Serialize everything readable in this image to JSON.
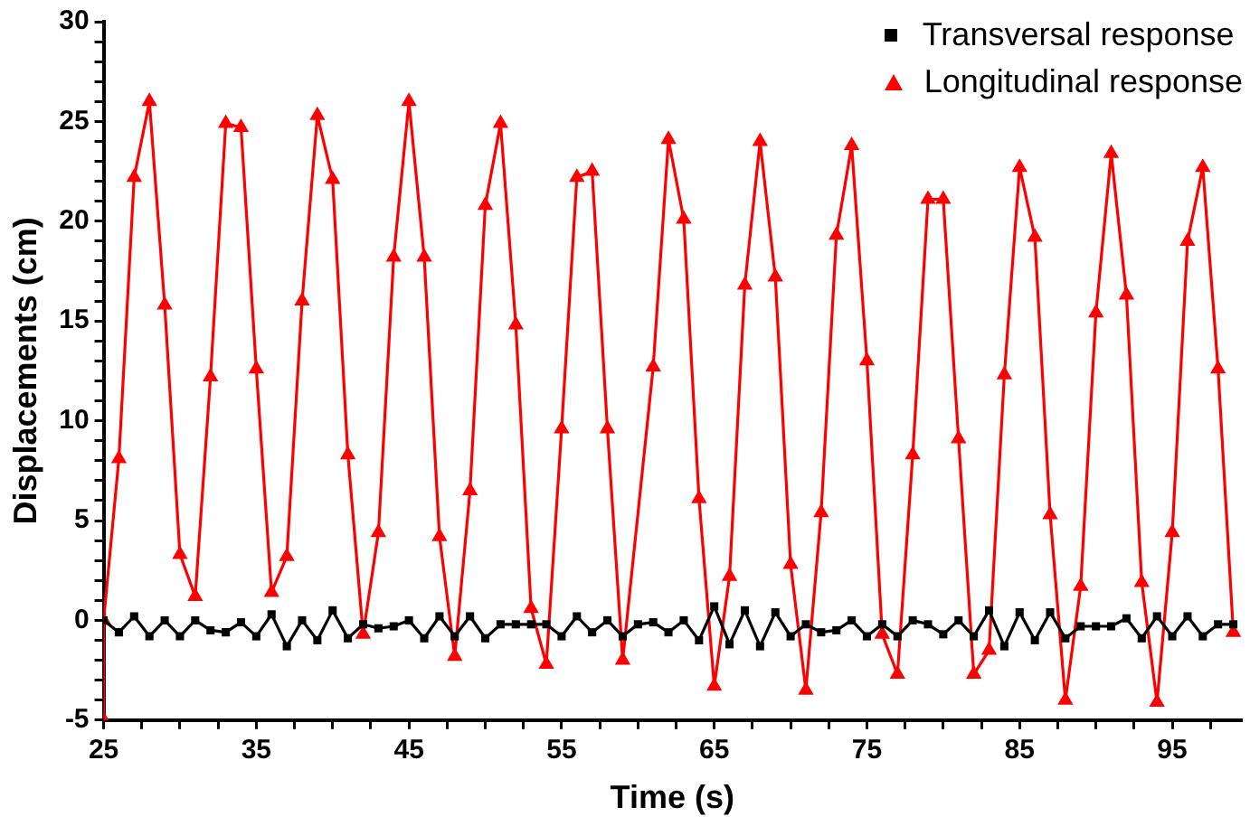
{
  "chart_data": {
    "type": "line",
    "xlabel": "Time (s)",
    "ylabel": "Displacements (cm)",
    "xlim": [
      25,
      99.5
    ],
    "ylim": [
      -5,
      30
    ],
    "xticks": [
      25,
      {
        "value": 27.5,
        "label": null
      },
      {
        "value": 30,
        "label": null
      },
      {
        "value": 32.5,
        "label": null
      },
      35,
      {
        "value": 37.5,
        "label": null
      },
      {
        "value": 40,
        "label": null
      },
      {
        "value": 42.5,
        "label": null
      },
      45,
      {
        "value": 47.5,
        "label": null
      },
      {
        "value": 50,
        "label": null
      },
      {
        "value": 52.5,
        "label": null
      },
      55,
      {
        "value": 57.5,
        "label": null
      },
      {
        "value": 60,
        "label": null
      },
      {
        "value": 62.5,
        "label": null
      },
      65,
      {
        "value": 67.5,
        "label": null
      },
      {
        "value": 70,
        "label": null
      },
      {
        "value": 72.5,
        "label": null
      },
      75,
      {
        "value": 77.5,
        "label": null
      },
      {
        "value": 80,
        "label": null
      },
      {
        "value": 82.5,
        "label": null
      },
      85,
      {
        "value": 87.5,
        "label": null
      },
      {
        "value": 90,
        "label": null
      },
      {
        "value": 92.5,
        "label": null
      },
      95,
      {
        "value": 97.5,
        "label": null
      }
    ],
    "yticks": [
      -5,
      {
        "value": -4,
        "label": null
      },
      {
        "value": -3,
        "label": null
      },
      {
        "value": -2,
        "label": null
      },
      {
        "value": -1,
        "label": null
      },
      0,
      {
        "value": 1,
        "label": null
      },
      {
        "value": 2,
        "label": null
      },
      {
        "value": 3,
        "label": null
      },
      {
        "value": 4,
        "label": null
      },
      5,
      {
        "value": 6,
        "label": null
      },
      {
        "value": 7,
        "label": null
      },
      {
        "value": 8,
        "label": null
      },
      {
        "value": 9,
        "label": null
      },
      10,
      {
        "value": 11,
        "label": null
      },
      {
        "value": 12,
        "label": null
      },
      {
        "value": 13,
        "label": null
      },
      {
        "value": 14,
        "label": null
      },
      15,
      {
        "value": 16,
        "label": null
      },
      {
        "value": 17,
        "label": null
      },
      {
        "value": 18,
        "label": null
      },
      {
        "value": 19,
        "label": null
      },
      20,
      {
        "value": 21,
        "label": null
      },
      {
        "value": 22,
        "label": null
      },
      {
        "value": 23,
        "label": null
      },
      {
        "value": 24,
        "label": null
      },
      25,
      {
        "value": 26,
        "label": null
      },
      {
        "value": 27,
        "label": null
      },
      {
        "value": 28,
        "label": null
      },
      {
        "value": 29,
        "label": null
      },
      30
    ],
    "grid": false,
    "legend": "top right",
    "line_style": "solid",
    "series": [
      {
        "name": "Transversal response",
        "color": "#000000",
        "marker": "square",
        "x": [
          25,
          26,
          27,
          28,
          29,
          30,
          31,
          32,
          33,
          34,
          35,
          36,
          37,
          38,
          39,
          40,
          41,
          42,
          43,
          44,
          45,
          46,
          47,
          48,
          49,
          50,
          51,
          52,
          53,
          54,
          55,
          56,
          57,
          58,
          59,
          60,
          61,
          62,
          63,
          64,
          65,
          66,
          67,
          68,
          69,
          70,
          71,
          72,
          73,
          74,
          75,
          76,
          77,
          78,
          79,
          80,
          81,
          82,
          83,
          84,
          85,
          86,
          87,
          88,
          89,
          90,
          91,
          92,
          93,
          94,
          95,
          96,
          97,
          98,
          99
        ],
        "values": [
          0.0,
          -0.6,
          0.2,
          -0.8,
          0.0,
          -0.8,
          0.0,
          -0.5,
          -0.6,
          -0.1,
          -0.8,
          0.3,
          -1.3,
          0.0,
          -1.0,
          0.5,
          -0.9,
          -0.2,
          -0.4,
          -0.3,
          0.0,
          -0.9,
          0.2,
          -0.8,
          0.2,
          -0.9,
          -0.2,
          -0.2,
          -0.2,
          -0.2,
          -0.8,
          0.2,
          -0.6,
          0.0,
          -0.8,
          -0.2,
          -0.1,
          -0.6,
          0.0,
          -1.0,
          0.7,
          -1.2,
          0.5,
          -1.3,
          0.4,
          -0.8,
          -0.2,
          -0.6,
          -0.5,
          0.0,
          -0.8,
          -0.2,
          -0.8,
          0.0,
          -0.2,
          -0.7,
          0.0,
          -0.8,
          0.5,
          -1.3,
          0.4,
          -1.0,
          0.4,
          -0.9,
          -0.3,
          -0.3,
          -0.3,
          0.1,
          -0.9,
          0.2,
          -0.8,
          0.2,
          -0.8,
          -0.2,
          -0.2
        ]
      },
      {
        "name": "Longitudinal response",
        "color": "#ff0000",
        "marker": "triangle",
        "x": [
          25,
          25,
          26,
          27,
          28,
          29,
          30,
          31,
          32,
          33,
          34,
          35,
          36,
          37,
          38,
          39,
          40,
          41,
          42,
          43,
          44,
          45,
          46,
          47,
          48,
          49,
          50,
          51,
          52,
          53,
          54,
          55,
          56,
          57,
          58,
          59,
          61,
          62,
          63,
          64,
          65,
          66,
          67,
          68,
          69,
          70,
          71,
          72,
          73,
          74,
          75,
          76,
          77,
          78,
          79,
          80,
          81,
          82,
          83,
          84,
          85,
          86,
          87,
          88,
          89,
          90,
          91,
          92,
          93,
          94,
          95,
          96,
          97,
          98,
          99
        ],
        "values": [
          -5,
          0.0,
          8.1,
          22.2,
          26.0,
          15.8,
          3.3,
          1.2,
          12.2,
          24.9,
          24.7,
          12.6,
          1.4,
          3.2,
          16.0,
          25.3,
          22.1,
          8.3,
          -0.7,
          4.4,
          18.2,
          26.0,
          18.2,
          4.2,
          -1.8,
          6.5,
          20.8,
          24.9,
          14.8,
          0.6,
          -2.2,
          9.6,
          22.2,
          22.5,
          9.6,
          -2.0,
          12.7,
          24.1,
          20.1,
          6.1,
          -3.3,
          2.2,
          16.8,
          24.0,
          17.2,
          2.8,
          -3.5,
          5.4,
          19.3,
          23.8,
          13.0,
          -0.7,
          -2.7,
          8.3,
          21.1,
          21.1,
          9.1,
          -2.7,
          -1.5,
          12.3,
          22.7,
          19.2,
          5.3,
          -4.0,
          1.7,
          15.4,
          23.4,
          16.3,
          1.9,
          -4.1,
          4.4,
          19.0,
          22.7,
          12.6,
          -0.6
        ]
      }
    ]
  }
}
